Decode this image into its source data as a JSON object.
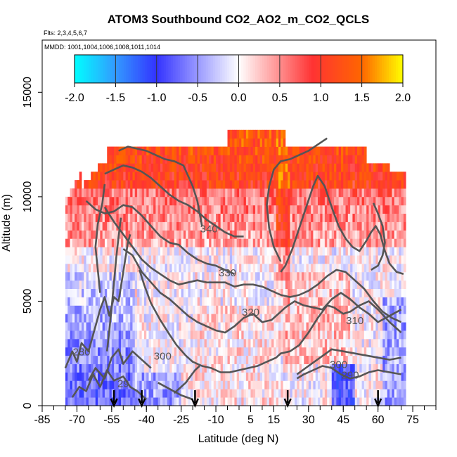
{
  "chart_data": {
    "type": "heatmap",
    "title": "ATOM3 Southbound CO2_AO2_m_CO2_QCLS",
    "flights_label": "Flts: 2,3,4,5,6,7",
    "dates_label": "MMDD: 1001,1004,1006,1008,1011,1014",
    "xlabel": "Latitude (deg N)",
    "ylabel": "Altitude (m)",
    "xlim": [
      -85,
      85
    ],
    "ylim": [
      0,
      17500
    ],
    "x_ticks": [
      -85,
      -70,
      -55,
      -40,
      -25,
      -10,
      5,
      15,
      30,
      45,
      60,
      75
    ],
    "x_tick_labels": [
      "-85",
      "-70",
      "-55",
      "-40",
      "-25",
      "-10",
      "5",
      "15",
      "30",
      "45",
      "60",
      "75"
    ],
    "y_ticks": [
      0,
      5000,
      10000,
      15000
    ],
    "y_tick_labels": [
      "0",
      "5000",
      "10000",
      "15000"
    ],
    "colorbar": {
      "min": -2.0,
      "max": 2.0,
      "ticks": [
        -2.0,
        -1.5,
        -1.0,
        -0.5,
        0.0,
        0.5,
        1.0,
        1.5,
        2.0
      ],
      "tick_labels": [
        "-2.0",
        "-1.5",
        "-1.0",
        "-0.5",
        "0.0",
        "0.5",
        "1.0",
        "1.5",
        "2.0"
      ],
      "colors": [
        "#00ffff",
        "#3399ff",
        "#3333ff",
        "#ffffff",
        "#ff3333",
        "#ff6600",
        "#ffff00"
      ]
    },
    "contour_labels": [
      {
        "text": "340",
        "lat": -13,
        "alt": 8300
      },
      {
        "text": "330",
        "lat": -5,
        "alt": 6200
      },
      {
        "text": "320",
        "lat": 5,
        "alt": 4300
      },
      {
        "text": "310",
        "lat": 50,
        "alt": 3900
      },
      {
        "text": "300",
        "lat": -33,
        "alt": 2200
      },
      {
        "text": "300",
        "lat": 43,
        "alt": 1800
      },
      {
        "text": "290",
        "lat": 48,
        "alt": 1300
      },
      {
        "text": "280",
        "lat": -68,
        "alt": 2400
      },
      {
        "text": "29",
        "lat": -50,
        "alt": 900
      }
    ],
    "profile_arrows_lat": [
      -54,
      -42,
      -19,
      21,
      60
    ]
  }
}
